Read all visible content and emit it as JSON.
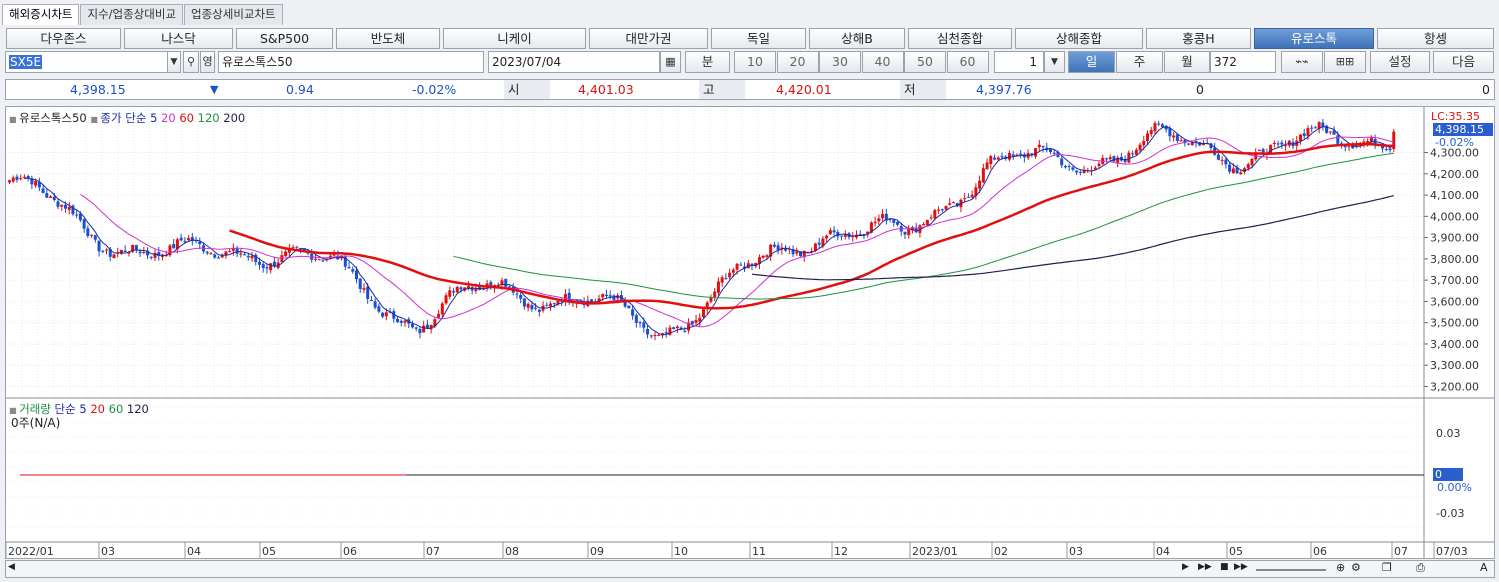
{
  "tabs": [
    "해외증시차트",
    "지수/업종상대비교",
    "업종상세비교차트"
  ],
  "markets": [
    "다우존스",
    "나스닥",
    "S&P500",
    "반도체",
    "니케이",
    "대만가권",
    "독일",
    "상해B",
    "심천종합",
    "상해종합",
    "홍콩H",
    "유로스톡",
    "항셍"
  ],
  "selected_market": "유로스톡",
  "code": "SX5E",
  "code_extra": "영",
  "name": "유로스톡스50",
  "date": "2023/07/04",
  "intervals": {
    "label": "분",
    "values": [
      "10",
      "20",
      "30",
      "40",
      "50",
      "60"
    ],
    "spinner": "1"
  },
  "periods": [
    "일",
    "주",
    "월"
  ],
  "selected_period": "일",
  "count": "372",
  "settings": "설정",
  "next": "다음",
  "info": {
    "price": "4,398.15",
    "arrow": "▼",
    "change": "0.94",
    "rate": "-0.02%",
    "open_label": "시",
    "open": "4,401.03",
    "high_label": "고",
    "high": "4,420.01",
    "low_label": "저",
    "low": "4,397.76",
    "vol1": "0",
    "vol2": "0"
  },
  "price_legend": {
    "name": "유로스톡스50",
    "type": "종가 단순",
    "ma": [
      "5",
      "20",
      "60",
      "120",
      "200"
    ]
  },
  "volume_legend": {
    "name": "거래량",
    "type": "단순",
    "ma": [
      "5",
      "20",
      "60",
      "120"
    ],
    "empty": "0주(N/A)"
  },
  "right_price": {
    "lc": "LC:35.35",
    "last": "4,398.15",
    "rate": "-0.02%"
  },
  "price_axis": [
    "4,300.00",
    "4,200.00",
    "4,100.00",
    "4,000.00",
    "3,900.00",
    "3,800.00",
    "3,700.00",
    "3,600.00",
    "3,500.00",
    "3,400.00",
    "3,300.00",
    "3,200.00"
  ],
  "volume_axis": {
    "top": "0.03",
    "zero": "0",
    "zero_pct": "0.00%",
    "bottom": "-0.03"
  },
  "x_axis": [
    "2022/01",
    "03",
    "04",
    "05",
    "06",
    "07",
    "08",
    "09",
    "10",
    "11",
    "12",
    "2023/01",
    "02",
    "03",
    "04",
    "05",
    "06",
    "07",
    "07/03"
  ],
  "colors": {
    "up": "#e01010",
    "down": "#1a4fd0",
    "ma5": "#1a2aa0",
    "ma20": "#d030d0",
    "ma60": "#e01010",
    "ma120": "#209040",
    "ma200": "#202050",
    "accent": "#3f72b8"
  },
  "chart_data": {
    "type": "candlestick",
    "price_range": [
      3160,
      4420
    ],
    "months": [
      "2022/01",
      "03",
      "04",
      "05",
      "06",
      "07",
      "08",
      "09",
      "10",
      "11",
      "12",
      "2023/01",
      "02",
      "03",
      "04",
      "05",
      "06",
      "07"
    ],
    "monthly_close_approx": [
      4170,
      3930,
      3800,
      3860,
      3750,
      3500,
      3680,
      3600,
      3460,
      3720,
      3950,
      3900,
      4250,
      4250,
      4350,
      4300,
      4340,
      4398
    ]
  }
}
